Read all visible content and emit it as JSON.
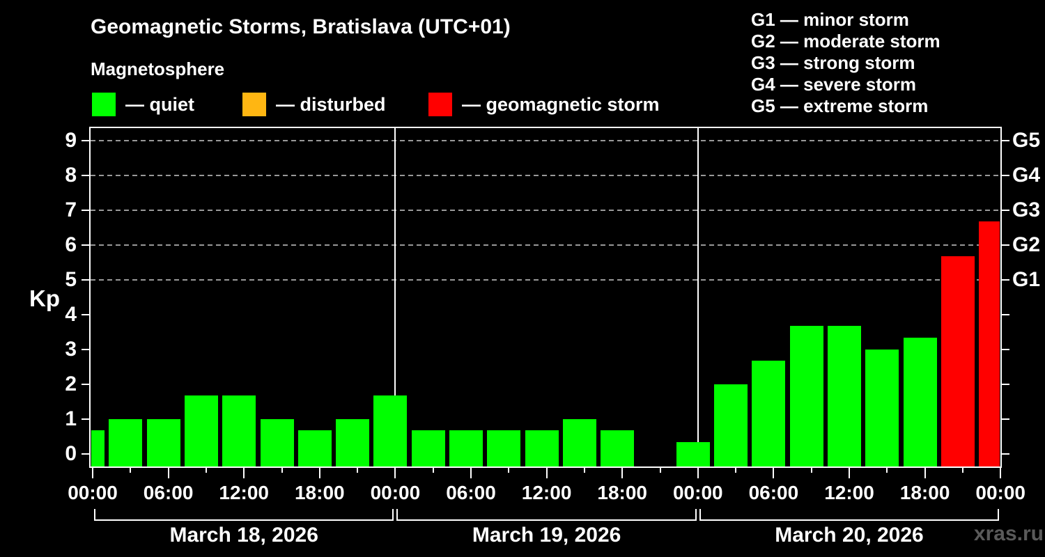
{
  "header": {
    "title": "Geomagnetic Storms, Bratislava (UTC+01)",
    "subtitle": "Magnetosphere"
  },
  "legend": {
    "items": [
      {
        "key": "quiet",
        "label": "— quiet",
        "color": "#00ff00"
      },
      {
        "key": "disturbed",
        "label": "— disturbed",
        "color": "#ffb612"
      },
      {
        "key": "storm",
        "label": "— geomagnetic storm",
        "color": "#ff0000"
      }
    ]
  },
  "storm_scale_legend": {
    "lines": [
      "G1 — minor storm",
      "G2 — moderate storm",
      "G3 — strong storm",
      "G4 — severe storm",
      "G5 — extreme storm"
    ]
  },
  "watermark": "xras.ru",
  "chart_data": {
    "type": "bar",
    "title": "Geomagnetic Storms, Bratislava (UTC+01)",
    "ylabel": "Kp",
    "ylim": [
      0,
      9
    ],
    "yticks": [
      0,
      1,
      2,
      3,
      4,
      5,
      6,
      7,
      8,
      9
    ],
    "grid": "dashed horizontal lines at G levels only",
    "slot_duration_hours": 3,
    "x_major_tick_labels": [
      "00:00",
      "06:00",
      "12:00",
      "18:00"
    ],
    "x_final_tick_label": "00:00",
    "g_scale": [
      {
        "kp": 5,
        "label": "G1"
      },
      {
        "kp": 6,
        "label": "G2"
      },
      {
        "kp": 7,
        "label": "G3"
      },
      {
        "kp": 8,
        "label": "G4"
      },
      {
        "kp": 9,
        "label": "G5"
      }
    ],
    "days": [
      {
        "date_label": "March 18, 2026",
        "kp": [
          0.67,
          1.0,
          1.0,
          1.67,
          1.67,
          1.0,
          0.67,
          1.0
        ],
        "status": [
          "quiet",
          "quiet",
          "quiet",
          "quiet",
          "quiet",
          "quiet",
          "quiet",
          "quiet"
        ]
      },
      {
        "date_label": "March 19, 2026",
        "kp": [
          1.67,
          0.67,
          0.67,
          0.67,
          0.67,
          1.0,
          0.67,
          null
        ],
        "status": [
          "quiet",
          "quiet",
          "quiet",
          "quiet",
          "quiet",
          "quiet",
          "quiet",
          null
        ]
      },
      {
        "date_label": "March 20, 2026",
        "kp": [
          0.33,
          2.0,
          2.67,
          3.67,
          3.67,
          3.0,
          3.33,
          5.67
        ],
        "status": [
          "quiet",
          "quiet",
          "quiet",
          "quiet",
          "quiet",
          "quiet",
          "quiet",
          "storm"
        ]
      },
      {
        "date_label": "",
        "kp": [
          6.67
        ],
        "status": [
          "storm"
        ]
      }
    ]
  }
}
